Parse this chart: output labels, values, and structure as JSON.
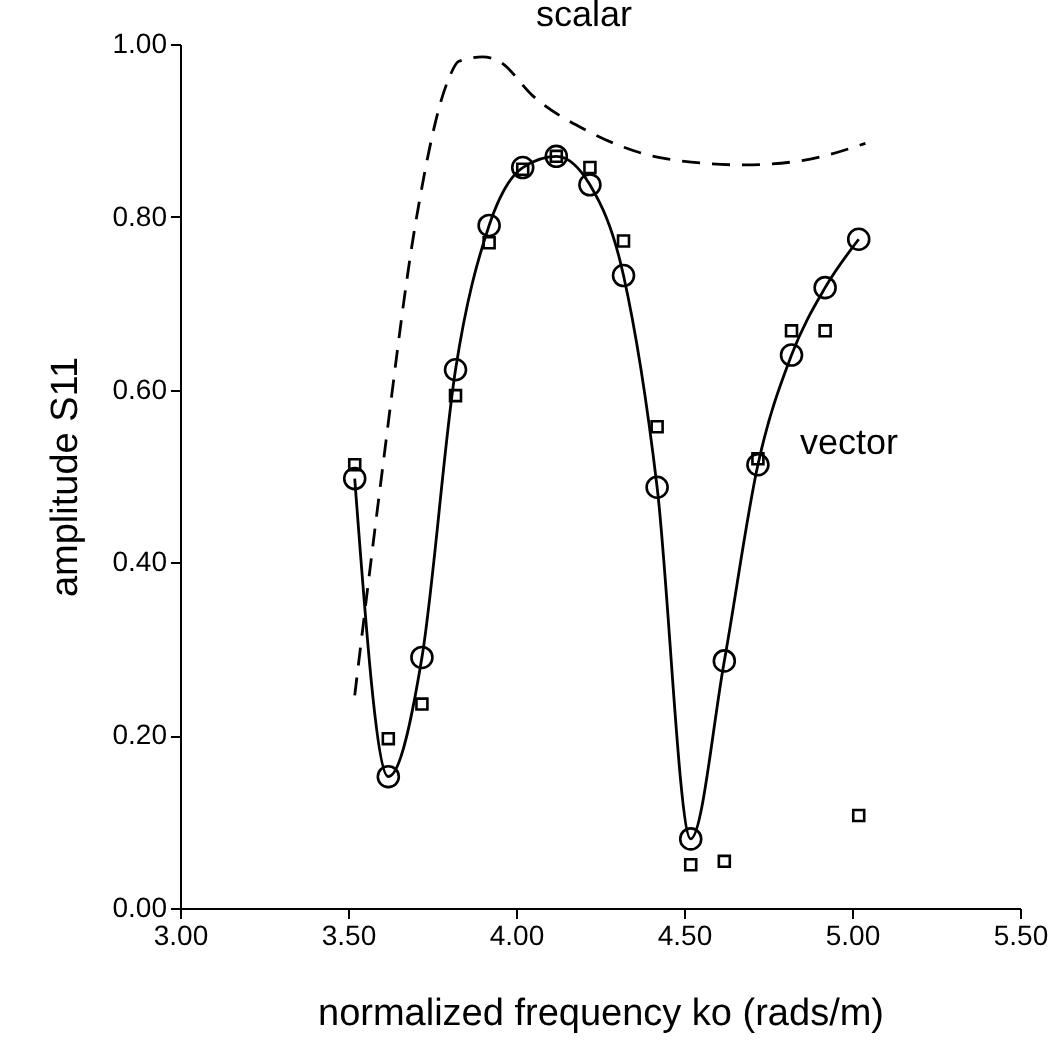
{
  "chart_data": {
    "type": "line",
    "xlabel": "normalized frequency ko (rads/m)",
    "ylabel": "amplitude S11",
    "xlim": [
      3,
      5.5
    ],
    "ylim": [
      0,
      1
    ],
    "xticks": [
      {
        "value": 3,
        "label": "3.00"
      },
      {
        "value": 3.5,
        "label": "3.50"
      },
      {
        "value": 4,
        "label": "4.00"
      },
      {
        "value": 4.5,
        "label": "4.50"
      },
      {
        "value": 5,
        "label": "5.00"
      },
      {
        "value": 5.5,
        "label": "5.50"
      }
    ],
    "yticks": [
      {
        "value": 0,
        "label": "0.00"
      },
      {
        "value": 0.2,
        "label": "0.20"
      },
      {
        "value": 0.4,
        "label": "0.40"
      },
      {
        "value": 0.6,
        "label": "0.60"
      },
      {
        "value": 0.8,
        "label": "0.80"
      },
      {
        "value": 1,
        "label": "1.00"
      }
    ],
    "grid": false,
    "series": [
      {
        "type": "line",
        "color": "#000000",
        "line_style": "dashed",
        "marker": "none",
        "x": [
          3.52,
          3.6,
          3.7,
          3.8,
          3.83,
          3.9,
          3.95,
          4.05,
          4.21,
          4.45,
          4.68,
          4.85,
          5.04
        ],
        "values": [
          0.246,
          0.5,
          0.79,
          0.96,
          0.98,
          0.985,
          0.98,
          0.94,
          0.9,
          0.867,
          0.86,
          0.865,
          0.885
        ]
      },
      {
        "type": "line",
        "color": "#000000",
        "line_style": "solid",
        "marker": "circle",
        "x": [
          3.52,
          3.62,
          3.72,
          3.82,
          3.92,
          4.02,
          4.12,
          4.22,
          4.32,
          4.42,
          4.52,
          4.62,
          4.72,
          4.82,
          4.92,
          5.02
        ],
        "values": [
          0.497,
          0.152,
          0.29,
          0.623,
          0.79,
          0.857,
          0.87,
          0.837,
          0.732,
          0.487,
          0.08,
          0.286,
          0.513,
          0.64,
          0.718,
          0.774
        ]
      },
      {
        "type": "scatter",
        "color": "#000000",
        "marker": "square",
        "x": [
          3.52,
          3.62,
          3.72,
          3.82,
          3.92,
          4.02,
          4.12,
          4.22,
          4.32,
          4.42,
          4.52,
          4.62,
          4.72,
          4.82,
          4.92,
          5.02
        ],
        "values": [
          0.513,
          0.196,
          0.236,
          0.593,
          0.77,
          0.855,
          0.87,
          0.857,
          0.772,
          0.557,
          0.05,
          0.054,
          0.52,
          0.668,
          0.668,
          0.107
        ]
      }
    ],
    "annotations": [
      "scalar",
      "vector"
    ]
  }
}
